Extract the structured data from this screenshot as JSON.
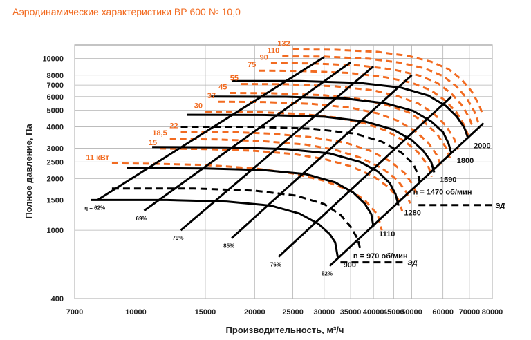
{
  "title": "Аэродинамические характеристики ВР 600 № 10,0",
  "chart_data": {
    "type": "line",
    "xlabel": "Производительность, м³/ч",
    "ylabel": "Полное давление, Па",
    "x_scale": "log",
    "y_scale": "log",
    "xlim": [
      7000,
      80000
    ],
    "ylim": [
      400,
      12000
    ],
    "x_ticks": [
      "7000",
      "10000",
      "15000",
      "20000",
      "25000",
      "30000",
      "35000",
      "40000",
      "45000",
      "50000",
      "60000",
      "70000",
      "80000"
    ],
    "y_ticks": [
      "400",
      "1000",
      "1500",
      "2000",
      "2500",
      "3000",
      "4000",
      "5000",
      "6000",
      "7000",
      "8000",
      "10000"
    ],
    "colors": {
      "power": "#f26b21",
      "curves": "#000000",
      "grid": "#b3b3b3",
      "title": "#f26b21"
    },
    "speed_curves": [
      {
        "label": "900",
        "points": [
          [
            7700,
            1500
          ],
          [
            12000,
            1500
          ],
          [
            17000,
            1470
          ],
          [
            22000,
            1390
          ],
          [
            26000,
            1250
          ],
          [
            29000,
            1090
          ],
          [
            31000,
            950
          ],
          [
            32000,
            850
          ],
          [
            32500,
            690
          ]
        ]
      },
      {
        "label": "1110",
        "points": [
          [
            9500,
            2300
          ],
          [
            15000,
            2290
          ],
          [
            21000,
            2240
          ],
          [
            27000,
            2120
          ],
          [
            32000,
            1900
          ],
          [
            35500,
            1660
          ],
          [
            38000,
            1430
          ],
          [
            39500,
            1240
          ],
          [
            40000,
            1050
          ]
        ]
      },
      {
        "label": "1280",
        "points": [
          [
            11000,
            3050
          ],
          [
            17000,
            3040
          ],
          [
            24000,
            2970
          ],
          [
            31000,
            2800
          ],
          [
            37000,
            2500
          ],
          [
            41000,
            2200
          ],
          [
            44000,
            1880
          ],
          [
            45500,
            1620
          ],
          [
            46300,
            1390
          ]
        ]
      },
      {
        "label": "1590",
        "points": [
          [
            13500,
            4700
          ],
          [
            21000,
            4690
          ],
          [
            30000,
            4580
          ],
          [
            38000,
            4300
          ],
          [
            45000,
            3850
          ],
          [
            50000,
            3350
          ],
          [
            53500,
            2900
          ],
          [
            56000,
            2500
          ],
          [
            57000,
            2170
          ]
        ]
      },
      {
        "label": "1800",
        "points": [
          [
            15500,
            6000
          ],
          [
            24000,
            5990
          ],
          [
            34000,
            5850
          ],
          [
            43000,
            5480
          ],
          [
            50500,
            4950
          ],
          [
            56000,
            4300
          ],
          [
            60000,
            3730
          ],
          [
            62000,
            3200
          ],
          [
            63000,
            2800
          ]
        ]
      },
      {
        "label": "2000",
        "points": [
          [
            17500,
            7400
          ],
          [
            26000,
            7390
          ],
          [
            37000,
            7210
          ],
          [
            47000,
            6770
          ],
          [
            55000,
            6100
          ],
          [
            61000,
            5300
          ],
          [
            65000,
            4600
          ],
          [
            68000,
            3950
          ],
          [
            69500,
            3420
          ]
        ]
      }
    ],
    "dashed_curves": [
      {
        "label": "n = 970 об/мин",
        "points": [
          [
            8700,
            1750
          ],
          [
            14000,
            1750
          ],
          [
            20000,
            1700
          ],
          [
            25500,
            1590
          ],
          [
            30000,
            1420
          ],
          [
            33000,
            1230
          ],
          [
            35000,
            1050
          ],
          [
            36500,
            890
          ],
          [
            37000,
            780
          ]
        ]
      },
      {
        "label": "n = 1470 об/мин",
        "points": [
          [
            13000,
            4000
          ],
          [
            20000,
            4000
          ],
          [
            28000,
            3900
          ],
          [
            36000,
            3650
          ],
          [
            42000,
            3280
          ],
          [
            47000,
            2840
          ],
          [
            50500,
            2430
          ],
          [
            52000,
            2080
          ],
          [
            52500,
            1840
          ]
        ]
      }
    ],
    "power_curves": [
      {
        "label": "11 кВт",
        "points": [
          [
            8700,
            2450
          ],
          [
            11000,
            2440
          ],
          [
            15000,
            2400
          ],
          [
            20000,
            2290
          ],
          [
            25000,
            2140
          ],
          [
            30000,
            1940
          ],
          [
            35000,
            1700
          ],
          [
            38000,
            1500
          ],
          [
            41000,
            1230
          ],
          [
            42000,
            1000
          ]
        ]
      },
      {
        "label": "15",
        "points": [
          [
            11500,
            2990
          ],
          [
            15000,
            2970
          ],
          [
            20000,
            2900
          ],
          [
            25000,
            2780
          ],
          [
            30000,
            2600
          ],
          [
            35000,
            2360
          ],
          [
            40000,
            2060
          ],
          [
            44000,
            1760
          ],
          [
            46500,
            1480
          ],
          [
            47300,
            1290
          ]
        ]
      },
      {
        "label": "18,5",
        "points": [
          [
            12200,
            3400
          ],
          [
            16000,
            3380
          ],
          [
            21000,
            3300
          ],
          [
            27000,
            3150
          ],
          [
            32000,
            2940
          ],
          [
            37000,
            2650
          ],
          [
            42000,
            2300
          ],
          [
            46000,
            1960
          ],
          [
            48500,
            1660
          ],
          [
            49500,
            1430
          ]
        ]
      },
      {
        "label": "22",
        "points": [
          [
            13000,
            3750
          ],
          [
            17000,
            3740
          ],
          [
            22000,
            3650
          ],
          [
            28000,
            3480
          ],
          [
            34000,
            3230
          ],
          [
            39000,
            2920
          ],
          [
            44000,
            2530
          ],
          [
            48000,
            2150
          ],
          [
            50500,
            1820
          ],
          [
            51500,
            1570
          ]
        ]
      },
      {
        "label": "30",
        "points": [
          [
            15000,
            4900
          ],
          [
            20000,
            4880
          ],
          [
            26000,
            4760
          ],
          [
            32000,
            4540
          ],
          [
            38000,
            4200
          ],
          [
            43000,
            3810
          ],
          [
            48000,
            3300
          ],
          [
            52000,
            2830
          ],
          [
            55000,
            2380
          ],
          [
            56200,
            2050
          ]
        ]
      },
      {
        "label": "37",
        "points": [
          [
            16200,
            5600
          ],
          [
            21000,
            5580
          ],
          [
            28000,
            5440
          ],
          [
            35000,
            5170
          ],
          [
            41000,
            4790
          ],
          [
            46000,
            4350
          ],
          [
            51000,
            3780
          ],
          [
            55000,
            3240
          ],
          [
            58000,
            2720
          ],
          [
            59300,
            2350
          ]
        ]
      },
      {
        "label": "45",
        "points": [
          [
            17300,
            6300
          ],
          [
            22000,
            6280
          ],
          [
            30000,
            6110
          ],
          [
            37000,
            5810
          ],
          [
            43000,
            5380
          ],
          [
            49000,
            4870
          ],
          [
            54000,
            4230
          ],
          [
            58000,
            3620
          ],
          [
            61000,
            3040
          ],
          [
            62500,
            2630
          ]
        ]
      },
      {
        "label": "55",
        "points": [
          [
            18500,
            7100
          ],
          [
            24000,
            7080
          ],
          [
            32000,
            6890
          ],
          [
            40000,
            6530
          ],
          [
            46000,
            6050
          ],
          [
            52000,
            5470
          ],
          [
            57000,
            4750
          ],
          [
            61000,
            4070
          ],
          [
            64000,
            3420
          ],
          [
            65600,
            2950
          ]
        ]
      },
      {
        "label": "75",
        "points": [
          [
            20500,
            8500
          ],
          [
            26000,
            8470
          ],
          [
            35000,
            8230
          ],
          [
            43000,
            7780
          ],
          [
            50000,
            7220
          ],
          [
            56000,
            6520
          ],
          [
            61000,
            5660
          ],
          [
            65000,
            4840
          ],
          [
            68000,
            4070
          ],
          [
            69700,
            3510
          ]
        ]
      },
      {
        "label": "90",
        "points": [
          [
            22000,
            9400
          ],
          [
            28000,
            9370
          ],
          [
            37000,
            9100
          ],
          [
            45000,
            8620
          ],
          [
            52000,
            7980
          ],
          [
            58000,
            7220
          ],
          [
            63000,
            6260
          ],
          [
            67000,
            5350
          ],
          [
            70000,
            4500
          ],
          [
            71700,
            3880
          ]
        ]
      },
      {
        "label": "110",
        "points": [
          [
            23500,
            10300
          ],
          [
            30000,
            10270
          ],
          [
            39000,
            9980
          ],
          [
            47000,
            9450
          ],
          [
            54000,
            8750
          ],
          [
            60000,
            7910
          ],
          [
            65000,
            6860
          ],
          [
            69000,
            5860
          ],
          [
            72000,
            4930
          ],
          [
            73700,
            4250
          ]
        ]
      },
      {
        "label": "132",
        "points": [
          [
            25000,
            11300
          ],
          [
            32000,
            11260
          ],
          [
            41000,
            10940
          ],
          [
            49000,
            10360
          ],
          [
            56000,
            9590
          ],
          [
            62000,
            8670
          ],
          [
            67000,
            7520
          ],
          [
            71000,
            6420
          ],
          [
            74000,
            5400
          ],
          [
            75800,
            4650
          ]
        ]
      }
    ],
    "efficiency_rays": [
      {
        "label": "η = 62%",
        "points": [
          [
            8000,
            1500
          ],
          [
            30000,
            10200
          ]
        ]
      },
      {
        "label": "69%",
        "points": [
          [
            10500,
            1300
          ],
          [
            35000,
            9500
          ]
        ]
      },
      {
        "label": "79%",
        "points": [
          [
            13000,
            1000
          ],
          [
            40000,
            9000
          ]
        ]
      },
      {
        "label": "85%",
        "points": [
          [
            17500,
            900
          ],
          [
            50000,
            8000
          ]
        ]
      },
      {
        "label": "76%",
        "points": [
          [
            23000,
            700
          ],
          [
            63000,
            6000
          ]
        ]
      },
      {
        "label": "52%",
        "points": [
          [
            31000,
            620
          ],
          [
            76000,
            4200
          ]
        ]
      }
    ],
    "drive_markers": [
      {
        "label": "ЭД",
        "points": [
          [
            52000,
            1400
          ],
          [
            80000,
            1400
          ]
        ]
      },
      {
        "label": "ЭД",
        "points": [
          [
            33000,
            650
          ],
          [
            48000,
            650
          ]
        ]
      }
    ]
  }
}
